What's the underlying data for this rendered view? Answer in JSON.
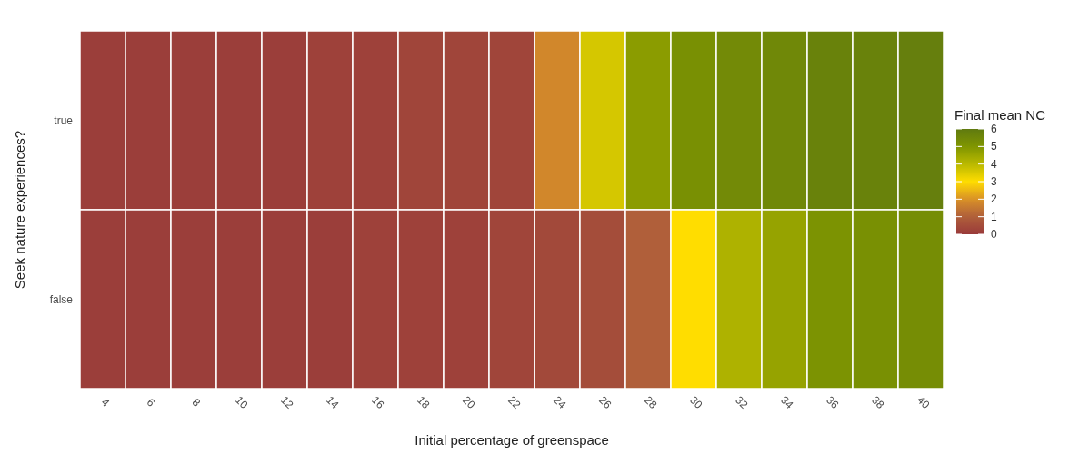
{
  "chart_data": {
    "type": "heatmap",
    "xlabel": "Initial percentage of greenspace",
    "ylabel": "Seek nature experiences?",
    "clabel": "Final mean NC",
    "categories": [
      "4",
      "6",
      "8",
      "10",
      "12",
      "14",
      "16",
      "18",
      "20",
      "22",
      "24",
      "26",
      "28",
      "30",
      "32",
      "34",
      "36",
      "38",
      "40"
    ],
    "y_categories": [
      "true",
      "false"
    ],
    "cells": [
      [
        0.1,
        0.1,
        0.1,
        0.1,
        0.1,
        0.2,
        0.2,
        0.3,
        0.3,
        0.3,
        1.8,
        3.6,
        4.8,
        5.2,
        5.4,
        5.5,
        5.7,
        5.7,
        5.8
      ],
      [
        0.1,
        0.1,
        0.1,
        0.1,
        0.1,
        0.1,
        0.2,
        0.2,
        0.2,
        0.3,
        0.4,
        0.5,
        1.0,
        3.0,
        4.2,
        4.6,
        5.1,
        5.2,
        5.3
      ]
    ],
    "clim": [
      0,
      6
    ],
    "cticks": [
      0,
      1,
      2,
      3,
      4,
      5,
      6
    ]
  }
}
